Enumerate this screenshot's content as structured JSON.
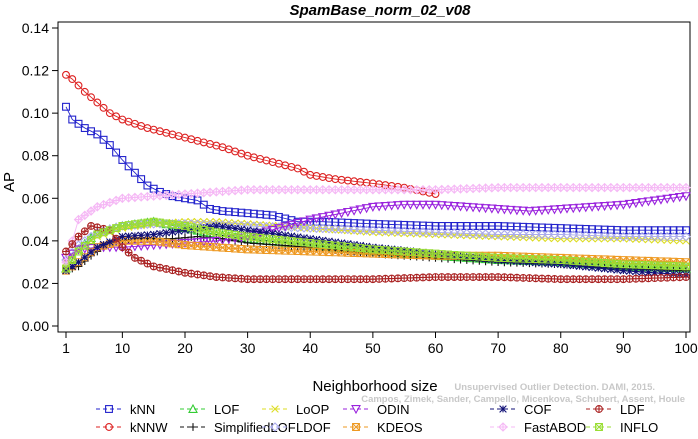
{
  "chart_data": {
    "type": "line",
    "title": "SpamBase_norm_02_v08",
    "xlabel": "Neighborhood size",
    "ylabel": "AP",
    "xlim": [
      1,
      100
    ],
    "ylim": [
      0,
      0.14
    ],
    "x_ticks": [
      1,
      10,
      20,
      30,
      40,
      50,
      60,
      70,
      80,
      90,
      100
    ],
    "y_ticks": [
      0.0,
      0.02,
      0.04,
      0.06,
      0.08,
      0.1,
      0.12,
      0.14
    ],
    "grid": false,
    "legend_position": "bottom",
    "watermark_lines": [
      "Unsupervised Outlier Detection. DAMI, 2015.",
      "Campos, Zimek, Sander, Campello, Micenkova, Schubert, Assent, Houle"
    ],
    "series": [
      {
        "name": "kNN",
        "color": "#2222cc",
        "marker": "square",
        "x_end": 100,
        "anchors": [
          [
            1,
            0.103
          ],
          [
            2,
            0.097
          ],
          [
            4,
            0.093
          ],
          [
            6,
            0.09
          ],
          [
            8,
            0.085
          ],
          [
            10,
            0.078
          ],
          [
            12,
            0.072
          ],
          [
            14,
            0.066
          ],
          [
            16,
            0.063
          ],
          [
            18,
            0.061
          ],
          [
            20,
            0.06
          ],
          [
            22,
            0.059
          ],
          [
            24,
            0.055
          ],
          [
            26,
            0.054
          ],
          [
            30,
            0.053
          ],
          [
            34,
            0.052
          ],
          [
            38,
            0.049
          ],
          [
            42,
            0.049
          ],
          [
            50,
            0.048
          ],
          [
            60,
            0.047
          ],
          [
            70,
            0.047
          ],
          [
            80,
            0.046
          ],
          [
            90,
            0.045
          ],
          [
            100,
            0.045
          ]
        ]
      },
      {
        "name": "kNNW",
        "color": "#dd2222",
        "marker": "circle",
        "x_end": 60,
        "anchors": [
          [
            1,
            0.118
          ],
          [
            2,
            0.116
          ],
          [
            4,
            0.11
          ],
          [
            6,
            0.105
          ],
          [
            8,
            0.1
          ],
          [
            10,
            0.097
          ],
          [
            14,
            0.093
          ],
          [
            18,
            0.09
          ],
          [
            22,
            0.087
          ],
          [
            26,
            0.084
          ],
          [
            30,
            0.08
          ],
          [
            34,
            0.077
          ],
          [
            38,
            0.074
          ],
          [
            40,
            0.071
          ],
          [
            44,
            0.069
          ],
          [
            50,
            0.067
          ],
          [
            55,
            0.065
          ],
          [
            60,
            0.062
          ]
        ]
      },
      {
        "name": "LOF",
        "color": "#33cc33",
        "marker": "triangle-up",
        "x_end": 100,
        "anchors": [
          [
            1,
            0.027
          ],
          [
            3,
            0.036
          ],
          [
            6,
            0.044
          ],
          [
            10,
            0.047
          ],
          [
            15,
            0.049
          ],
          [
            20,
            0.046
          ],
          [
            25,
            0.043
          ],
          [
            30,
            0.041
          ],
          [
            40,
            0.038
          ],
          [
            50,
            0.035
          ],
          [
            60,
            0.033
          ],
          [
            70,
            0.031
          ],
          [
            80,
            0.03
          ],
          [
            90,
            0.028
          ],
          [
            100,
            0.027
          ]
        ]
      },
      {
        "name": "SimplifiedLOF",
        "color": "#111111",
        "marker": "plus",
        "x_end": 100,
        "anchors": [
          [
            1,
            0.026
          ],
          [
            3,
            0.028
          ],
          [
            5,
            0.033
          ],
          [
            8,
            0.039
          ],
          [
            12,
            0.041
          ],
          [
            18,
            0.041
          ],
          [
            22,
            0.042
          ],
          [
            26,
            0.041
          ],
          [
            30,
            0.039
          ],
          [
            40,
            0.037
          ],
          [
            50,
            0.034
          ],
          [
            60,
            0.032
          ],
          [
            70,
            0.03
          ],
          [
            80,
            0.029
          ],
          [
            90,
            0.027
          ],
          [
            100,
            0.026
          ]
        ]
      },
      {
        "name": "LoOP",
        "color": "#dddd22",
        "marker": "x",
        "x_end": 100,
        "anchors": [
          [
            1,
            0.03
          ],
          [
            3,
            0.036
          ],
          [
            6,
            0.042
          ],
          [
            10,
            0.046
          ],
          [
            15,
            0.048
          ],
          [
            20,
            0.049
          ],
          [
            25,
            0.049
          ],
          [
            30,
            0.048
          ],
          [
            40,
            0.046
          ],
          [
            50,
            0.044
          ],
          [
            60,
            0.043
          ],
          [
            70,
            0.042
          ],
          [
            80,
            0.041
          ],
          [
            90,
            0.041
          ],
          [
            100,
            0.04
          ]
        ]
      },
      {
        "name": "LDOF",
        "color": "#aaaaee",
        "marker": "diamond",
        "x_end": 100,
        "anchors": [
          [
            1,
            0.031
          ],
          [
            3,
            0.038
          ],
          [
            6,
            0.044
          ],
          [
            10,
            0.047
          ],
          [
            15,
            0.048
          ],
          [
            20,
            0.048
          ],
          [
            30,
            0.047
          ],
          [
            40,
            0.046
          ],
          [
            50,
            0.045
          ],
          [
            60,
            0.044
          ],
          [
            70,
            0.043
          ],
          [
            80,
            0.043
          ],
          [
            90,
            0.042
          ],
          [
            100,
            0.042
          ]
        ]
      },
      {
        "name": "ODIN",
        "color": "#9922dd",
        "marker": "triangle-down",
        "x_end": 100,
        "anchors": [
          [
            1,
            0.032
          ],
          [
            3,
            0.036
          ],
          [
            6,
            0.037
          ],
          [
            10,
            0.037
          ],
          [
            15,
            0.038
          ],
          [
            20,
            0.039
          ],
          [
            25,
            0.04
          ],
          [
            30,
            0.042
          ],
          [
            35,
            0.046
          ],
          [
            40,
            0.05
          ],
          [
            45,
            0.053
          ],
          [
            50,
            0.056
          ],
          [
            55,
            0.057
          ],
          [
            60,
            0.057
          ],
          [
            65,
            0.056
          ],
          [
            70,
            0.055
          ],
          [
            75,
            0.054
          ],
          [
            80,
            0.055
          ],
          [
            85,
            0.056
          ],
          [
            90,
            0.057
          ],
          [
            95,
            0.059
          ],
          [
            100,
            0.061
          ]
        ]
      },
      {
        "name": "KDEOS",
        "color": "#ee9922",
        "marker": "square-x",
        "x_end": 100,
        "anchors": [
          [
            1,
            0.026
          ],
          [
            3,
            0.03
          ],
          [
            6,
            0.037
          ],
          [
            10,
            0.04
          ],
          [
            15,
            0.04
          ],
          [
            20,
            0.038
          ],
          [
            25,
            0.037
          ],
          [
            30,
            0.036
          ],
          [
            40,
            0.035
          ],
          [
            50,
            0.034
          ],
          [
            60,
            0.033
          ],
          [
            70,
            0.033
          ],
          [
            80,
            0.032
          ],
          [
            90,
            0.031
          ],
          [
            100,
            0.03
          ]
        ]
      },
      {
        "name": "COF",
        "color": "#111177",
        "marker": "asterisk",
        "x_end": 100,
        "anchors": [
          [
            1,
            0.026
          ],
          [
            3,
            0.03
          ],
          [
            6,
            0.037
          ],
          [
            10,
            0.042
          ],
          [
            15,
            0.043
          ],
          [
            20,
            0.045
          ],
          [
            25,
            0.047
          ],
          [
            30,
            0.045
          ],
          [
            40,
            0.041
          ],
          [
            50,
            0.037
          ],
          [
            60,
            0.034
          ],
          [
            70,
            0.031
          ],
          [
            80,
            0.029
          ],
          [
            90,
            0.026
          ],
          [
            100,
            0.024
          ]
        ]
      },
      {
        "name": "FastABOD",
        "color": "#f5b8f5",
        "marker": "diamond-plus",
        "x_end": 100,
        "anchors": [
          [
            1,
            0.03
          ],
          [
            3,
            0.05
          ],
          [
            6,
            0.056
          ],
          [
            10,
            0.06
          ],
          [
            15,
            0.061
          ],
          [
            20,
            0.062
          ],
          [
            25,
            0.063
          ],
          [
            30,
            0.064
          ],
          [
            40,
            0.064
          ],
          [
            50,
            0.064
          ],
          [
            60,
            0.064
          ],
          [
            70,
            0.065
          ],
          [
            80,
            0.065
          ],
          [
            90,
            0.065
          ],
          [
            100,
            0.065
          ]
        ]
      },
      {
        "name": "LDF",
        "color": "#aa2222",
        "marker": "circle-plus",
        "x_end": 100,
        "anchors": [
          [
            1,
            0.035
          ],
          [
            3,
            0.042
          ],
          [
            5,
            0.047
          ],
          [
            8,
            0.045
          ],
          [
            10,
            0.037
          ],
          [
            12,
            0.032
          ],
          [
            15,
            0.028
          ],
          [
            20,
            0.025
          ],
          [
            25,
            0.023
          ],
          [
            30,
            0.022
          ],
          [
            40,
            0.022
          ],
          [
            50,
            0.022
          ],
          [
            60,
            0.023
          ],
          [
            70,
            0.023
          ],
          [
            80,
            0.022
          ],
          [
            90,
            0.022
          ],
          [
            100,
            0.023
          ]
        ]
      },
      {
        "name": "INFLO",
        "color": "#99dd33",
        "marker": "square-hourglass",
        "x_end": 100,
        "anchors": [
          [
            1,
            0.027
          ],
          [
            3,
            0.035
          ],
          [
            6,
            0.043
          ],
          [
            10,
            0.047
          ],
          [
            15,
            0.049
          ],
          [
            20,
            0.047
          ],
          [
            25,
            0.044
          ],
          [
            30,
            0.042
          ],
          [
            40,
            0.039
          ],
          [
            50,
            0.036
          ],
          [
            60,
            0.034
          ],
          [
            70,
            0.032
          ],
          [
            80,
            0.031
          ],
          [
            90,
            0.029
          ],
          [
            100,
            0.028
          ]
        ]
      }
    ],
    "legend_order": [
      "kNN",
      "kNNW",
      "LOF",
      "SimplifiedLOF",
      "LoOP",
      "LDOF",
      "ODIN",
      "KDEOS",
      "COF",
      "FastABOD",
      "LDF",
      "INFLO"
    ]
  }
}
